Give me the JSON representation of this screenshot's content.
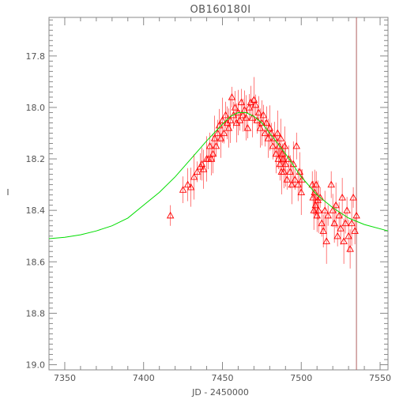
{
  "chart_data": {
    "type": "scatter",
    "title": "OB160180I",
    "xlabel": "JD - 2450000",
    "ylabel": "I",
    "xlim": [
      7340,
      7555
    ],
    "ylim": [
      19.02,
      17.65
    ],
    "y_inverted": true,
    "xticks": [
      7350,
      7400,
      7450,
      7500,
      7550
    ],
    "xtick_labels": [
      "7350",
      "7400",
      "7450",
      "7500",
      "7550"
    ],
    "yticks": [
      17.8,
      18.0,
      18.2,
      18.4,
      18.6,
      18.8,
      19.0
    ],
    "ytick_labels": [
      "17.8",
      "18.0",
      "18.2",
      "18.4",
      "18.6",
      "18.8",
      "19.0"
    ],
    "vertical_line_x": 7535,
    "grid": false,
    "colors": {
      "points": "#ff0000",
      "model": "#00dd00",
      "axes": "#888888",
      "vline": "#b06060"
    },
    "series": [
      {
        "kind": "model_curve",
        "x": [
          7340,
          7350,
          7360,
          7370,
          7380,
          7390,
          7400,
          7410,
          7420,
          7430,
          7440,
          7450,
          7455,
          7460,
          7465,
          7470,
          7475,
          7480,
          7490,
          7500,
          7510,
          7520,
          7530,
          7540,
          7555
        ],
        "y": [
          18.51,
          18.505,
          18.495,
          18.48,
          18.46,
          18.43,
          18.38,
          18.33,
          18.27,
          18.2,
          18.13,
          18.065,
          18.035,
          18.02,
          18.02,
          18.035,
          18.06,
          18.1,
          18.18,
          18.27,
          18.34,
          18.39,
          18.43,
          18.455,
          18.48
        ]
      },
      {
        "kind": "observations",
        "x": [
          7417,
          7425,
          7428,
          7430,
          7432,
          7434,
          7436,
          7437,
          7438,
          7440,
          7441,
          7442,
          7443,
          7444,
          7445,
          7446,
          7447,
          7448,
          7449,
          7450,
          7451,
          7452,
          7453,
          7454,
          7455,
          7456,
          7457,
          7458,
          7459,
          7460,
          7461,
          7462,
          7463,
          7464,
          7465,
          7466,
          7467,
          7468,
          7469,
          7470,
          7471,
          7472,
          7473,
          7474,
          7475,
          7476,
          7477,
          7478,
          7479,
          7480,
          7481,
          7482,
          7483,
          7484,
          7485,
          7485.5,
          7486,
          7486.5,
          7487,
          7487.5,
          7488,
          7488.5,
          7489,
          7489.5,
          7490,
          7491,
          7492,
          7493,
          7494,
          7495,
          7496,
          7497,
          7498,
          7499,
          7500,
          7500.5,
          7507,
          7507.5,
          7508,
          7508.5,
          7509,
          7509.5,
          7510,
          7510.5,
          7511,
          7512,
          7513,
          7514,
          7515,
          7516,
          7517,
          7519,
          7520,
          7521,
          7522,
          7523,
          7524,
          7525,
          7526,
          7527,
          7528,
          7529,
          7530,
          7531,
          7532,
          7533,
          7534,
          7535
        ],
        "y": [
          18.42,
          18.32,
          18.3,
          18.31,
          18.27,
          18.25,
          18.23,
          18.22,
          18.24,
          18.2,
          18.2,
          18.15,
          18.2,
          18.18,
          18.12,
          18.15,
          18.1,
          18.07,
          18.12,
          18.05,
          18.1,
          18.03,
          18.06,
          18.08,
          18.05,
          17.96,
          18.03,
          18.0,
          18.06,
          18.02,
          18.05,
          17.98,
          18.03,
          18.01,
          18.04,
          18.08,
          18.0,
          17.98,
          18.04,
          17.97,
          17.99,
          18.05,
          18.02,
          18.08,
          18.06,
          18.03,
          18.1,
          18.06,
          18.12,
          18.08,
          18.1,
          18.15,
          18.12,
          18.18,
          18.1,
          18.2,
          18.15,
          18.22,
          18.12,
          18.25,
          18.18,
          18.2,
          18.25,
          18.15,
          18.22,
          18.28,
          18.2,
          18.25,
          18.3,
          18.22,
          18.28,
          18.15,
          18.3,
          18.25,
          18.33,
          18.28,
          18.3,
          18.35,
          18.4,
          18.33,
          18.38,
          18.3,
          18.42,
          18.36,
          18.4,
          18.35,
          18.45,
          18.48,
          18.4,
          18.52,
          18.42,
          18.3,
          18.4,
          18.45,
          18.38,
          18.5,
          18.42,
          18.47,
          18.35,
          18.52,
          18.45,
          18.4,
          18.5,
          18.55,
          18.45,
          18.35,
          18.48,
          18.42
        ]
      }
    ]
  }
}
